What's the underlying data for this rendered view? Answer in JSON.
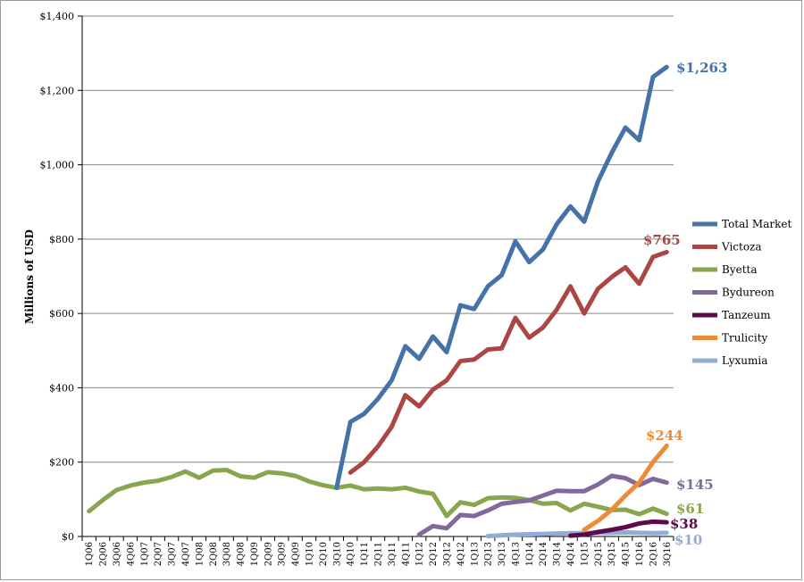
{
  "chart_data": {
    "type": "line",
    "title": "",
    "xlabel": "",
    "ylabel": "Millions of USD",
    "ylim": [
      0,
      1400
    ],
    "yticks": [
      0,
      200,
      400,
      600,
      800,
      1000,
      1200,
      1400
    ],
    "ytick_labels": [
      "$0",
      "$200",
      "$400",
      "$600",
      "$800",
      "$1,000",
      "$1,200",
      "$1,400"
    ],
    "grid": "horizontal",
    "legend_position": "right",
    "categories": [
      "1Q06",
      "2Q06",
      "3Q06",
      "4Q06",
      "1Q07",
      "2Q07",
      "3Q07",
      "4Q07",
      "1Q08",
      "2Q08",
      "3Q08",
      "4Q08",
      "1Q09",
      "2Q09",
      "3Q09",
      "4Q09",
      "1Q10",
      "2Q10",
      "3Q10",
      "4Q10",
      "1Q11",
      "2Q11",
      "3Q11",
      "4Q11",
      "1Q12",
      "2Q12",
      "3Q12",
      "4Q12",
      "1Q13",
      "2Q13",
      "3Q13",
      "4Q13",
      "1Q14",
      "2Q14",
      "3Q14",
      "4Q14",
      "1Q15",
      "2Q15",
      "3Q15",
      "4Q15",
      "1Q16",
      "2Q16",
      "3Q16"
    ],
    "series": [
      {
        "name": "Total Market",
        "color": "#4572a7",
        "end_label": "$1,263",
        "values": [
          null,
          null,
          null,
          null,
          null,
          null,
          null,
          null,
          null,
          null,
          null,
          null,
          null,
          null,
          null,
          null,
          null,
          null,
          null,
          308,
          330,
          370,
          420,
          512,
          478,
          538,
          496,
          622,
          612,
          673,
          703,
          794,
          738,
          772,
          840,
          888,
          847,
          955,
          1032,
          1100,
          1066,
          1236,
          1263
        ]
      },
      {
        "name": "Victoza",
        "color": "#aa4643",
        "end_label": "$765",
        "values": [
          null,
          null,
          null,
          null,
          null,
          null,
          null,
          null,
          null,
          null,
          null,
          null,
          null,
          null,
          null,
          null,
          null,
          null,
          null,
          172,
          200,
          242,
          295,
          380,
          350,
          395,
          420,
          472,
          476,
          503,
          506,
          588,
          535,
          562,
          610,
          673,
          600,
          666,
          698,
          724,
          680,
          752,
          765
        ]
      },
      {
        "name": "Byetta",
        "color": "#89a54e",
        "end_label": "$61",
        "values": [
          68,
          98,
          125,
          137,
          145,
          150,
          160,
          175,
          158,
          177,
          179,
          162,
          158,
          173,
          170,
          163,
          148,
          138,
          131,
          137,
          127,
          129,
          127,
          131,
          121,
          115,
          55,
          92,
          85,
          103,
          105,
          104,
          98,
          88,
          90,
          70,
          88,
          80,
          71,
          72,
          60,
          75,
          61
        ]
      },
      {
        "name": "Bydureon",
        "color": "#80699b",
        "end_label": "$145",
        "values": [
          null,
          null,
          null,
          null,
          null,
          null,
          null,
          null,
          null,
          null,
          null,
          null,
          null,
          null,
          null,
          null,
          null,
          null,
          null,
          null,
          null,
          null,
          null,
          null,
          5,
          28,
          22,
          58,
          55,
          70,
          88,
          93,
          97,
          110,
          123,
          122,
          122,
          140,
          163,
          157,
          138,
          155,
          145
        ]
      },
      {
        "name": "Tanzeum",
        "color": "#5c0a4a",
        "end_label": "$38",
        "values": [
          null,
          null,
          null,
          null,
          null,
          null,
          null,
          null,
          null,
          null,
          null,
          null,
          null,
          null,
          null,
          null,
          null,
          null,
          null,
          null,
          null,
          null,
          null,
          null,
          null,
          null,
          null,
          null,
          null,
          null,
          null,
          null,
          null,
          null,
          null,
          2,
          5,
          12,
          18,
          25,
          35,
          40,
          38
        ]
      },
      {
        "name": "Trulicity",
        "color": "#ee8b3a",
        "end_label": "$244",
        "values": [
          null,
          null,
          null,
          null,
          null,
          null,
          null,
          null,
          null,
          null,
          null,
          null,
          null,
          null,
          null,
          null,
          null,
          null,
          null,
          null,
          null,
          null,
          null,
          null,
          null,
          null,
          null,
          null,
          null,
          null,
          null,
          null,
          null,
          null,
          null,
          null,
          18,
          42,
          72,
          110,
          145,
          200,
          244
        ]
      },
      {
        "name": "Lyxumia",
        "color": "#93acd6",
        "end_label": "$10",
        "values": [
          null,
          null,
          null,
          null,
          null,
          null,
          null,
          null,
          null,
          null,
          null,
          null,
          null,
          null,
          null,
          null,
          null,
          null,
          null,
          null,
          null,
          null,
          null,
          null,
          null,
          null,
          null,
          null,
          null,
          1,
          3,
          5,
          6,
          7,
          8,
          9,
          9,
          10,
          10,
          11,
          10,
          9,
          10
        ]
      }
    ]
  }
}
